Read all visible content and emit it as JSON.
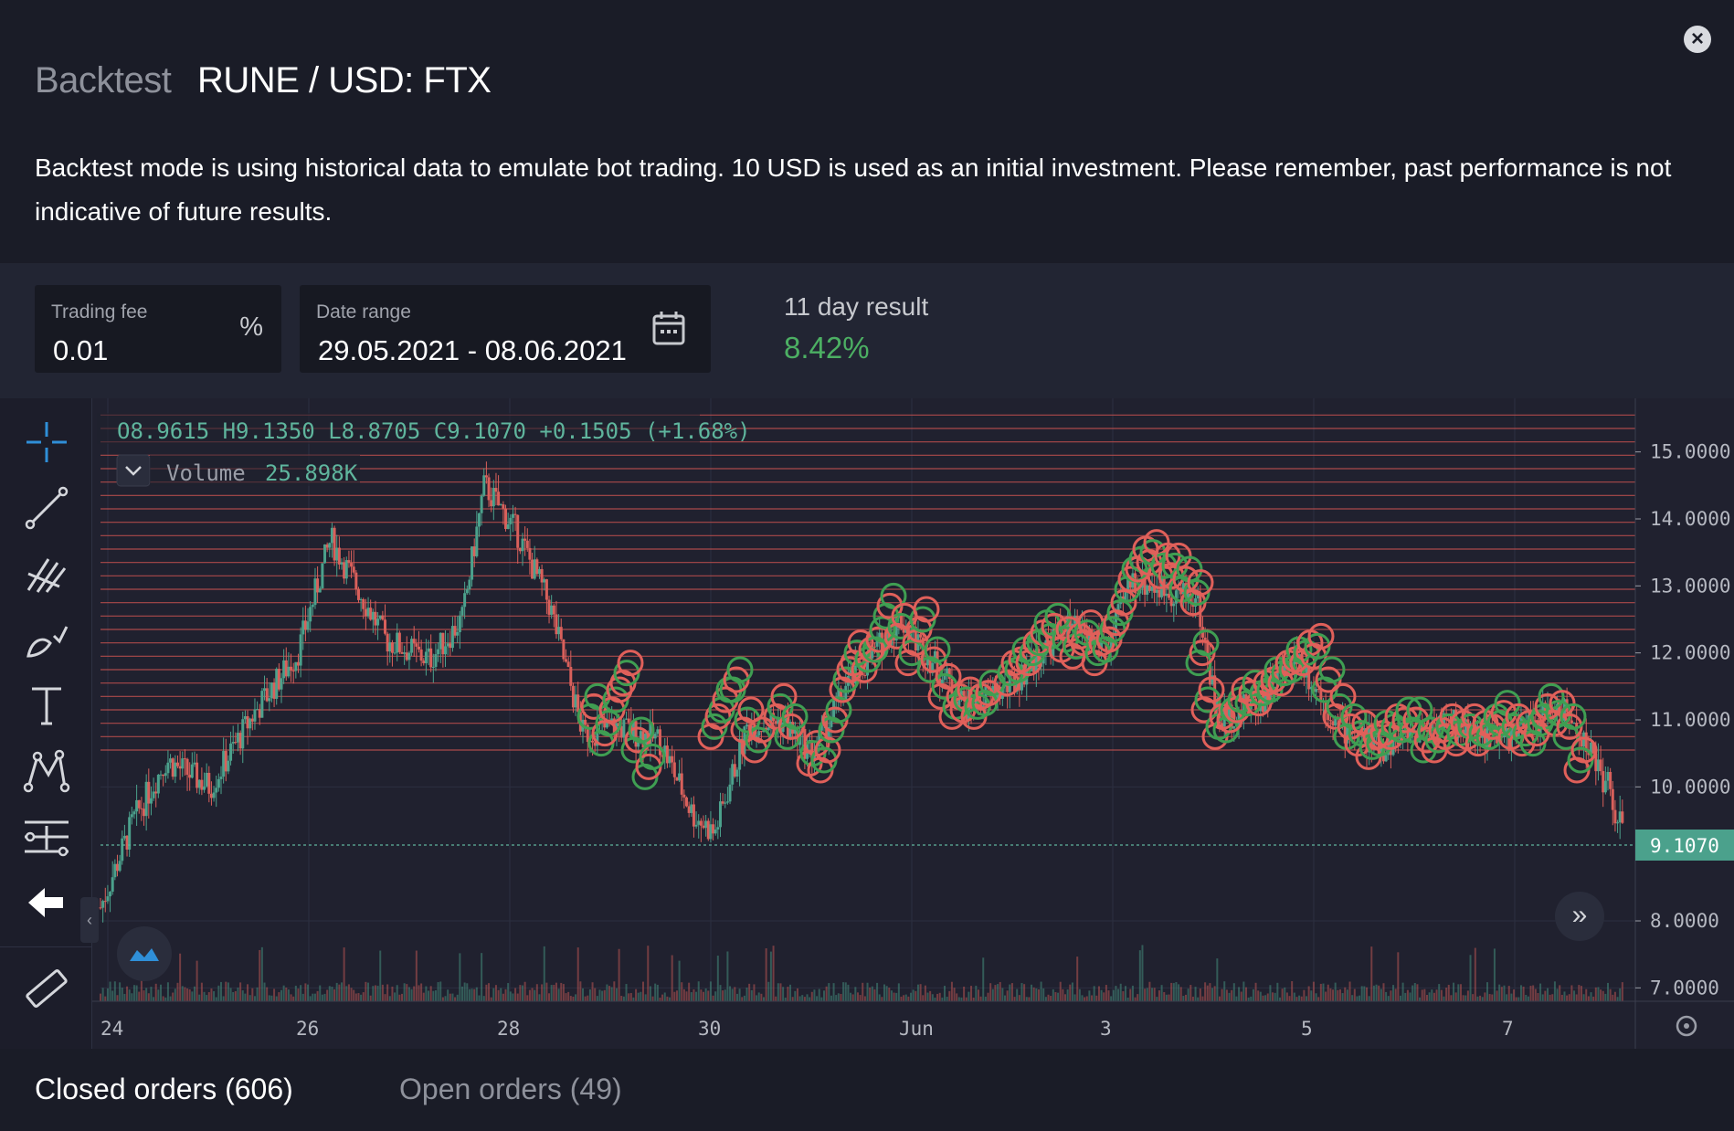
{
  "header": {
    "title_prefix": "Backtest",
    "title_pair": "RUNE / USD: FTX",
    "description": "Backtest mode is using historical data to emulate bot trading. 10 USD is used as an initial investment. Please remember, past performance is not indicative of future results.",
    "close_icon": "close-icon"
  },
  "settings": {
    "trading_fee_label": "Trading fee",
    "trading_fee_value": "0.01",
    "trading_fee_unit": "%",
    "date_range_label": "Date range",
    "date_range_value": "29.05.2021 - 08.06.2021",
    "calendar_icon": "calendar-icon",
    "result_label": "11 day result",
    "result_value": "8.42%",
    "result_color": "#4caf63"
  },
  "chart_overlay": {
    "ohlc": "O8.9615  H9.1350  L8.8705  C9.1070  +0.1505  (+1.68%)",
    "volume_label": "Volume",
    "volume_value": "25.898K",
    "current_price_label": "9.1070"
  },
  "toolbar_icons": [
    "crosshair-icon",
    "trend-line-icon",
    "fib-icon",
    "brush-icon",
    "text-icon",
    "pattern-icon",
    "measure-tools-icon",
    "back-arrow-icon",
    "ruler-icon"
  ],
  "chart_data": {
    "type": "candlestick",
    "symbol": "RUNE / USD",
    "y_axis_labels": [
      "15.0000",
      "14.0000",
      "13.0000",
      "12.0000",
      "11.0000",
      "10.0000",
      "8.0000",
      "7.0000"
    ],
    "y_axis_values": [
      15,
      14,
      13,
      12,
      11,
      10,
      8,
      7
    ],
    "x_axis_labels": [
      "24",
      "26",
      "28",
      "30",
      "Jun",
      "3",
      "5",
      "7"
    ],
    "ylim": [
      6.8,
      15.8
    ],
    "last_price": 9.107,
    "grid_line_range": [
      10.55,
      15.55
    ],
    "price_path": [
      [
        0,
        8.2
      ],
      [
        30,
        9.5
      ],
      [
        60,
        10.4
      ],
      [
        100,
        10.0
      ],
      [
        140,
        11.1
      ],
      [
        180,
        12.0
      ],
      [
        210,
        13.7
      ],
      [
        260,
        12.2
      ],
      [
        300,
        11.9
      ],
      [
        330,
        12.5
      ],
      [
        350,
        14.5
      ],
      [
        380,
        13.8
      ],
      [
        410,
        12.7
      ],
      [
        440,
        10.8
      ],
      [
        470,
        10.9
      ],
      [
        510,
        10.7
      ],
      [
        540,
        9.6
      ],
      [
        560,
        9.3
      ],
      [
        590,
        10.9
      ],
      [
        620,
        11.0
      ],
      [
        650,
        10.5
      ],
      [
        680,
        11.5
      ],
      [
        730,
        12.5
      ],
      [
        790,
        11.2
      ],
      [
        830,
        11.5
      ],
      [
        880,
        12.4
      ],
      [
        920,
        12.1
      ],
      [
        940,
        13.1
      ],
      [
        1000,
        12.8
      ],
      [
        1020,
        11.0
      ],
      [
        1060,
        11.3
      ],
      [
        1090,
        12.0
      ],
      [
        1130,
        10.9
      ],
      [
        1170,
        10.6
      ],
      [
        1220,
        11.0
      ],
      [
        1280,
        10.7
      ],
      [
        1330,
        11.2
      ],
      [
        1350,
        10.8
      ],
      [
        1375,
        10.0
      ],
      [
        1390,
        9.2
      ]
    ],
    "buy_sell_markers": {
      "sell_color": "#e0605a",
      "buy_color": "#3f9e52",
      "series": [
        [
          450,
          11.2
        ],
        [
          460,
          10.8
        ],
        [
          470,
          11.3
        ],
        [
          480,
          11.7
        ],
        [
          490,
          10.7
        ],
        [
          500,
          10.3
        ],
        [
          560,
          10.9
        ],
        [
          570,
          11.3
        ],
        [
          580,
          11.6
        ],
        [
          590,
          11.0
        ],
        [
          600,
          10.7
        ],
        [
          620,
          11.2
        ],
        [
          630,
          10.9
        ],
        [
          650,
          10.5
        ],
        [
          660,
          10.4
        ],
        [
          670,
          11.0
        ],
        [
          680,
          11.6
        ],
        [
          690,
          12.0
        ],
        [
          700,
          11.9
        ],
        [
          710,
          12.2
        ],
        [
          720,
          12.7
        ],
        [
          730,
          12.4
        ],
        [
          740,
          12.0
        ],
        [
          750,
          12.5
        ],
        [
          760,
          11.9
        ],
        [
          770,
          11.5
        ],
        [
          780,
          11.2
        ],
        [
          790,
          11.3
        ],
        [
          800,
          11.2
        ],
        [
          810,
          11.4
        ],
        [
          830,
          11.7
        ],
        [
          840,
          11.9
        ],
        [
          850,
          12.0
        ],
        [
          860,
          12.3
        ],
        [
          870,
          12.4
        ],
        [
          880,
          12.2
        ],
        [
          890,
          12.1
        ],
        [
          900,
          12.3
        ],
        [
          910,
          12.0
        ],
        [
          920,
          12.2
        ],
        [
          930,
          12.6
        ],
        [
          940,
          13.1
        ],
        [
          950,
          13.4
        ],
        [
          960,
          13.5
        ],
        [
          970,
          13.3
        ],
        [
          980,
          13.3
        ],
        [
          990,
          13.1
        ],
        [
          1000,
          12.9
        ],
        [
          1005,
          12.0
        ],
        [
          1010,
          11.3
        ],
        [
          1020,
          10.9
        ],
        [
          1030,
          11.0
        ],
        [
          1040,
          11.3
        ],
        [
          1050,
          11.4
        ],
        [
          1060,
          11.4
        ],
        [
          1070,
          11.6
        ],
        [
          1080,
          11.7
        ],
        [
          1090,
          11.9
        ],
        [
          1100,
          12.0
        ],
        [
          1110,
          12.1
        ],
        [
          1120,
          11.6
        ],
        [
          1130,
          11.2
        ],
        [
          1140,
          10.9
        ],
        [
          1150,
          10.8
        ],
        [
          1160,
          10.6
        ],
        [
          1170,
          10.8
        ],
        [
          1180,
          10.9
        ],
        [
          1190,
          11.0
        ],
        [
          1200,
          11.0
        ],
        [
          1210,
          10.7
        ],
        [
          1220,
          10.7
        ],
        [
          1230,
          10.9
        ],
        [
          1240,
          10.8
        ],
        [
          1250,
          10.9
        ],
        [
          1260,
          10.8
        ],
        [
          1270,
          10.9
        ],
        [
          1280,
          11.1
        ],
        [
          1290,
          10.9
        ],
        [
          1300,
          10.8
        ],
        [
          1310,
          10.8
        ],
        [
          1320,
          11.2
        ],
        [
          1330,
          11.1
        ],
        [
          1340,
          10.9
        ],
        [
          1350,
          10.4
        ]
      ]
    }
  },
  "tabs": {
    "closed_orders": "Closed orders (606)",
    "open_orders": "Open orders (49)"
  }
}
